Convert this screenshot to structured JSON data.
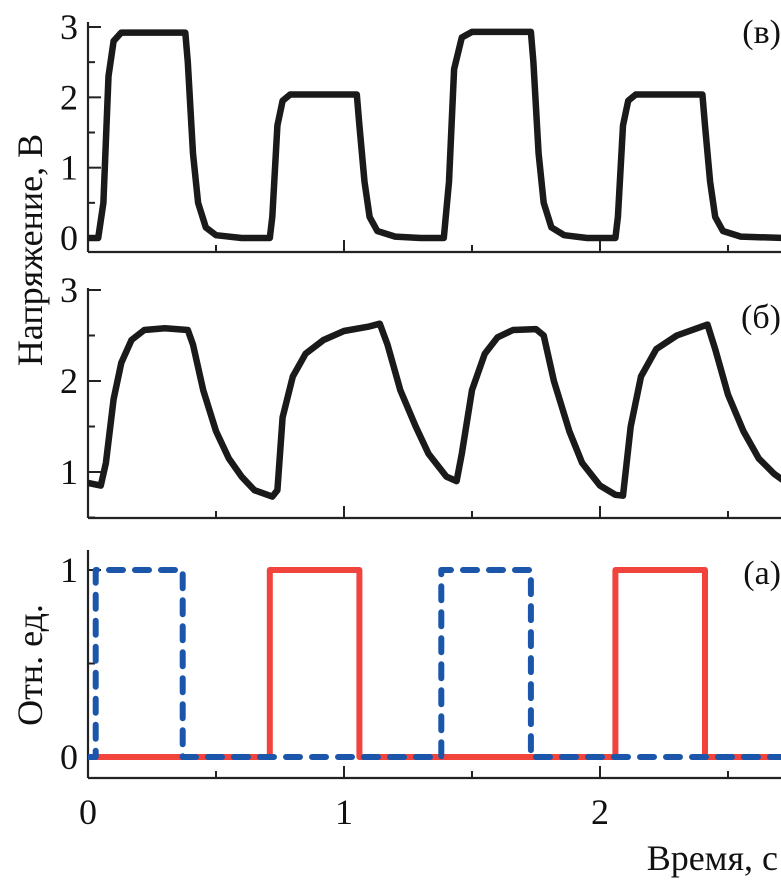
{
  "chart_data": [
    {
      "type": "line",
      "panel_label": "(в)",
      "ylabel": "Напряжение, В",
      "ylim": [
        -0.2,
        3
      ],
      "yticks": [
        "0",
        "1",
        "2",
        "3"
      ],
      "ytick_values": [
        0,
        1,
        2,
        3
      ],
      "xlim": [
        0,
        2.72
      ],
      "series": [
        {
          "name": "voltage-v",
          "color": "#1a1a1a",
          "style": "solid",
          "points": [
            [
              0,
              0
            ],
            [
              0.04,
              0
            ],
            [
              0.06,
              0.5
            ],
            [
              0.08,
              2.3
            ],
            [
              0.1,
              2.8
            ],
            [
              0.13,
              2.92
            ],
            [
              0.38,
              2.92
            ],
            [
              0.39,
              2.5
            ],
            [
              0.41,
              1.2
            ],
            [
              0.43,
              0.5
            ],
            [
              0.46,
              0.15
            ],
            [
              0.5,
              0.04
            ],
            [
              0.6,
              0
            ],
            [
              0.71,
              0
            ],
            [
              0.72,
              0.3
            ],
            [
              0.74,
              1.6
            ],
            [
              0.76,
              1.95
            ],
            [
              0.79,
              2.04
            ],
            [
              1.05,
              2.04
            ],
            [
              1.06,
              1.6
            ],
            [
              1.08,
              0.8
            ],
            [
              1.1,
              0.3
            ],
            [
              1.13,
              0.1
            ],
            [
              1.2,
              0.02
            ],
            [
              1.3,
              0
            ],
            [
              1.39,
              0
            ],
            [
              1.41,
              0.8
            ],
            [
              1.43,
              2.4
            ],
            [
              1.46,
              2.85
            ],
            [
              1.5,
              2.93
            ],
            [
              1.73,
              2.93
            ],
            [
              1.74,
              2.5
            ],
            [
              1.76,
              1.2
            ],
            [
              1.78,
              0.5
            ],
            [
              1.81,
              0.15
            ],
            [
              1.86,
              0.04
            ],
            [
              1.95,
              0
            ],
            [
              2.06,
              0
            ],
            [
              2.07,
              0.3
            ],
            [
              2.09,
              1.6
            ],
            [
              2.11,
              1.95
            ],
            [
              2.14,
              2.04
            ],
            [
              2.4,
              2.04
            ],
            [
              2.41,
              1.6
            ],
            [
              2.43,
              0.8
            ],
            [
              2.45,
              0.3
            ],
            [
              2.48,
              0.1
            ],
            [
              2.55,
              0.02
            ],
            [
              2.72,
              0
            ]
          ]
        }
      ]
    },
    {
      "type": "line",
      "panel_label": "(б)",
      "ylim": [
        0.5,
        3
      ],
      "yticks": [
        "1",
        "2",
        "3"
      ],
      "ytick_values": [
        1,
        2,
        3
      ],
      "xlim": [
        0,
        2.72
      ],
      "series": [
        {
          "name": "voltage-b",
          "color": "#1a1a1a",
          "style": "solid",
          "points": [
            [
              0,
              0.88
            ],
            [
              0.05,
              0.85
            ],
            [
              0.07,
              1.1
            ],
            [
              0.1,
              1.8
            ],
            [
              0.13,
              2.2
            ],
            [
              0.17,
              2.45
            ],
            [
              0.22,
              2.56
            ],
            [
              0.3,
              2.58
            ],
            [
              0.39,
              2.56
            ],
            [
              0.41,
              2.4
            ],
            [
              0.45,
              1.9
            ],
            [
              0.5,
              1.45
            ],
            [
              0.55,
              1.15
            ],
            [
              0.6,
              0.95
            ],
            [
              0.65,
              0.8
            ],
            [
              0.72,
              0.73
            ],
            [
              0.74,
              0.8
            ],
            [
              0.76,
              1.6
            ],
            [
              0.8,
              2.05
            ],
            [
              0.85,
              2.3
            ],
            [
              0.92,
              2.45
            ],
            [
              1.0,
              2.55
            ],
            [
              1.1,
              2.6
            ],
            [
              1.14,
              2.63
            ],
            [
              1.17,
              2.4
            ],
            [
              1.22,
              1.9
            ],
            [
              1.28,
              1.5
            ],
            [
              1.33,
              1.2
            ],
            [
              1.4,
              0.95
            ],
            [
              1.44,
              0.9
            ],
            [
              1.46,
              1.2
            ],
            [
              1.5,
              1.9
            ],
            [
              1.55,
              2.3
            ],
            [
              1.6,
              2.48
            ],
            [
              1.66,
              2.56
            ],
            [
              1.75,
              2.57
            ],
            [
              1.78,
              2.5
            ],
            [
              1.82,
              2.0
            ],
            [
              1.88,
              1.45
            ],
            [
              1.93,
              1.1
            ],
            [
              2.0,
              0.85
            ],
            [
              2.06,
              0.75
            ],
            [
              2.09,
              0.74
            ],
            [
              2.12,
              1.5
            ],
            [
              2.16,
              2.05
            ],
            [
              2.22,
              2.35
            ],
            [
              2.3,
              2.5
            ],
            [
              2.38,
              2.58
            ],
            [
              2.42,
              2.62
            ],
            [
              2.45,
              2.35
            ],
            [
              2.5,
              1.85
            ],
            [
              2.56,
              1.45
            ],
            [
              2.62,
              1.15
            ],
            [
              2.68,
              0.98
            ],
            [
              2.72,
              0.9
            ]
          ]
        }
      ]
    },
    {
      "type": "line",
      "panel_label": "(а)",
      "ylabel": "Отн. ед.",
      "xlabel": "Время, с",
      "ylim": [
        -0.11,
        1.1
      ],
      "yticks": [
        "0",
        "1"
      ],
      "ytick_values": [
        0,
        1
      ],
      "xlim": [
        0,
        2.72
      ],
      "xticks": [
        "0",
        "1",
        "2"
      ],
      "xtick_values": [
        0,
        1,
        2
      ],
      "series": [
        {
          "name": "signal-red",
          "color": "#f0443c",
          "style": "solid",
          "points": [
            [
              0,
              0
            ],
            [
              0.71,
              0
            ],
            [
              0.71,
              1
            ],
            [
              1.06,
              1
            ],
            [
              1.06,
              0
            ],
            [
              2.06,
              0
            ],
            [
              2.06,
              1
            ],
            [
              2.41,
              1
            ],
            [
              2.41,
              0
            ],
            [
              2.72,
              0
            ]
          ]
        },
        {
          "name": "signal-blue",
          "color": "#1b56aa",
          "style": "dashed",
          "points": [
            [
              0,
              0
            ],
            [
              0.03,
              0
            ],
            [
              0.03,
              1
            ],
            [
              0.37,
              1
            ],
            [
              0.37,
              0
            ],
            [
              1.38,
              0
            ],
            [
              1.38,
              1
            ],
            [
              1.73,
              1
            ],
            [
              1.73,
              0
            ],
            [
              2.72,
              0
            ]
          ]
        }
      ]
    }
  ]
}
